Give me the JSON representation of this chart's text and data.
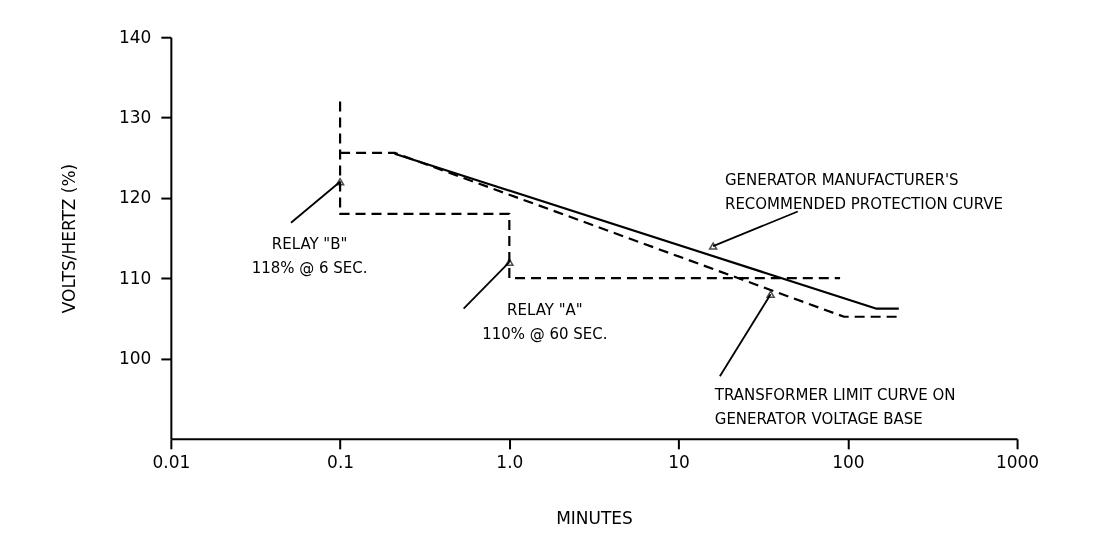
{
  "chart_data": {
    "type": "line",
    "xlabel": "MINUTES",
    "ylabel": "VOLTS/HERTZ (%)",
    "log": "x",
    "xlim": [
      0.01,
      1000
    ],
    "ylim": [
      90,
      140
    ],
    "xticks": [
      0.01,
      0.1,
      {
        "value": 1,
        "label": "1.0"
      },
      10,
      100,
      1000
    ],
    "yticks": [
      100,
      110,
      120,
      130,
      140
    ],
    "grid": false,
    "marker": "none",
    "series": [
      {
        "color": "#000000",
        "line_style": "dashed",
        "x": [
          0.1,
          0.1,
          1,
          1,
          90
        ],
        "values": [
          132,
          118,
          118,
          110,
          110
        ]
      },
      {
        "color": "#000000",
        "line_style": "solid",
        "x": [
          0.21,
          148,
          200
        ],
        "values": [
          125.5,
          106.2,
          106.2
        ]
      },
      {
        "color": "#000000",
        "line_style": "dashed",
        "x": [
          0.1,
          0.21,
          95,
          200
        ],
        "values": [
          125.6,
          125.6,
          105.2,
          105.2
        ]
      }
    ],
    "annotations": [
      {
        "text": "RELAY \"B\"\n118% @ 6 SEC.",
        "x": 0.1,
        "y": 122
      },
      {
        "text": "RELAY \"A\"\n110% @ 60 SEC.",
        "x": 1,
        "y": 112
      },
      {
        "text": "GENERATOR MANUFACTURER'S\nRECOMMENDED PROTECTION CURVE",
        "x": 16,
        "y": 114
      },
      {
        "text": "TRANSFORMER LIMIT CURVE ON\nGENERATOR VOLTAGE BASE",
        "x": 35,
        "y": 108
      }
    ]
  }
}
